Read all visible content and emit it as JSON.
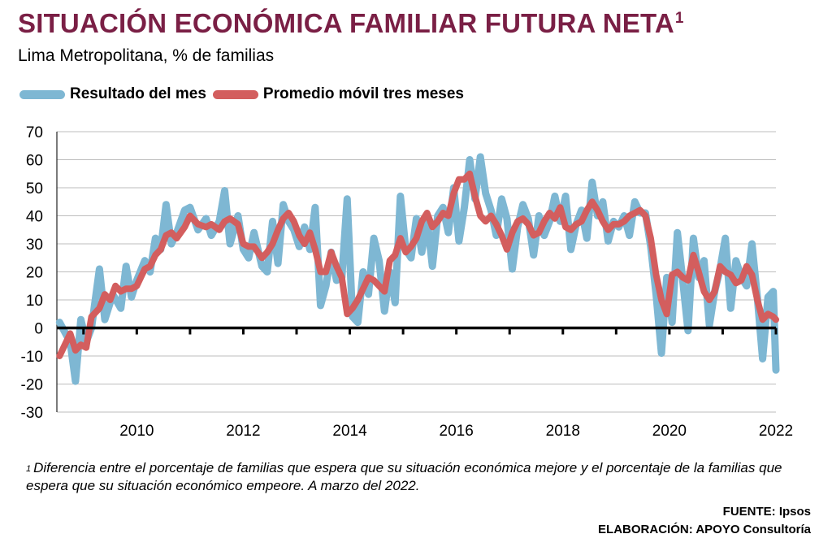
{
  "header": {
    "title": "SITUACIÓN ECONÓMICA FAMILIAR FUTURA NETA",
    "title_sup": "1",
    "subtitle": "Lima Metropolitana, % de familias"
  },
  "legend": {
    "monthly_label": "Resultado del mes",
    "moving_avg_label": "Promedio móvil tres meses",
    "monthly_color": "#7eb7d3",
    "moving_avg_color": "#d35e5e"
  },
  "footer": {
    "footnote_marker": "1",
    "footnote": "Diferencia entre el porcentaje de familias que espera que su situación económica mejore y el porcentaje de la familias que espera que su situación económico empeore. A marzo del 2022.",
    "source": "FUENTE: Ipsos",
    "elaboration": "ELABORACIÓN: APOYO Consultoría"
  },
  "chart_data": {
    "type": "line",
    "title": "SITUACIÓN ECONÓMICA FAMILIAR FUTURA NETA",
    "subtitle": "Lima Metropolitana, % de familias",
    "xlabel": "",
    "ylabel": "",
    "ylim": [
      -30,
      70
    ],
    "yticks": [
      70,
      60,
      50,
      40,
      30,
      20,
      10,
      0,
      -10,
      -20,
      -30
    ],
    "xlim": [
      2008.5,
      2022.0
    ],
    "xticks": [
      "2010",
      "2012",
      "2014",
      "2016",
      "2018",
      "2020",
      "2022"
    ],
    "grid": "horizontal",
    "legend_position": "top-left",
    "series": [
      {
        "name": "Resultado del mes",
        "color": "#7eb7d3",
        "points": [
          [
            2008.55,
            2
          ],
          [
            2008.75,
            -5
          ],
          [
            2008.85,
            -19
          ],
          [
            2008.95,
            3
          ],
          [
            2009.05,
            -5
          ],
          [
            2009.15,
            0
          ],
          [
            2009.3,
            21
          ],
          [
            2009.4,
            3
          ],
          [
            2009.55,
            12
          ],
          [
            2009.7,
            7
          ],
          [
            2009.8,
            22
          ],
          [
            2009.9,
            11
          ],
          [
            2010.0,
            17
          ],
          [
            2010.15,
            24
          ],
          [
            2010.25,
            20
          ],
          [
            2010.35,
            32
          ],
          [
            2010.45,
            28
          ],
          [
            2010.55,
            44
          ],
          [
            2010.65,
            30
          ],
          [
            2010.75,
            34
          ],
          [
            2010.9,
            42
          ],
          [
            2011.0,
            43
          ],
          [
            2011.15,
            35
          ],
          [
            2011.3,
            39
          ],
          [
            2011.4,
            33
          ],
          [
            2011.55,
            38
          ],
          [
            2011.65,
            49
          ],
          [
            2011.75,
            30
          ],
          [
            2011.9,
            40
          ],
          [
            2012.0,
            28
          ],
          [
            2012.1,
            25
          ],
          [
            2012.2,
            34
          ],
          [
            2012.35,
            22
          ],
          [
            2012.45,
            20
          ],
          [
            2012.55,
            38
          ],
          [
            2012.65,
            23
          ],
          [
            2012.75,
            44
          ],
          [
            2012.85,
            38
          ],
          [
            2012.95,
            35
          ],
          [
            2013.05,
            29
          ],
          [
            2013.15,
            36
          ],
          [
            2013.25,
            28
          ],
          [
            2013.35,
            43
          ],
          [
            2013.45,
            8
          ],
          [
            2013.55,
            15
          ],
          [
            2013.65,
            27
          ],
          [
            2013.75,
            17
          ],
          [
            2013.85,
            18
          ],
          [
            2013.95,
            46
          ],
          [
            2014.05,
            4
          ],
          [
            2014.15,
            2
          ],
          [
            2014.25,
            20
          ],
          [
            2014.35,
            12
          ],
          [
            2014.45,
            32
          ],
          [
            2014.55,
            24
          ],
          [
            2014.65,
            6
          ],
          [
            2014.75,
            20
          ],
          [
            2014.85,
            9
          ],
          [
            2014.95,
            47
          ],
          [
            2015.05,
            28
          ],
          [
            2015.15,
            25
          ],
          [
            2015.25,
            39
          ],
          [
            2015.35,
            27
          ],
          [
            2015.45,
            39
          ],
          [
            2015.55,
            22
          ],
          [
            2015.65,
            40
          ],
          [
            2015.75,
            43
          ],
          [
            2015.85,
            34
          ],
          [
            2015.95,
            50
          ],
          [
            2016.05,
            31
          ],
          [
            2016.15,
            43
          ],
          [
            2016.25,
            60
          ],
          [
            2016.35,
            46
          ],
          [
            2016.45,
            61
          ],
          [
            2016.55,
            48
          ],
          [
            2016.65,
            42
          ],
          [
            2016.75,
            33
          ],
          [
            2016.85,
            46
          ],
          [
            2016.95,
            39
          ],
          [
            2017.05,
            21
          ],
          [
            2017.15,
            36
          ],
          [
            2017.25,
            44
          ],
          [
            2017.35,
            39
          ],
          [
            2017.45,
            26
          ],
          [
            2017.55,
            40
          ],
          [
            2017.65,
            33
          ],
          [
            2017.75,
            38
          ],
          [
            2017.85,
            47
          ],
          [
            2017.95,
            38
          ],
          [
            2018.05,
            47
          ],
          [
            2018.15,
            28
          ],
          [
            2018.25,
            37
          ],
          [
            2018.35,
            42
          ],
          [
            2018.45,
            32
          ],
          [
            2018.55,
            52
          ],
          [
            2018.65,
            40
          ],
          [
            2018.75,
            45
          ],
          [
            2018.85,
            31
          ],
          [
            2018.95,
            38
          ],
          [
            2019.05,
            36
          ],
          [
            2019.15,
            40
          ],
          [
            2019.25,
            33
          ],
          [
            2019.35,
            45
          ],
          [
            2019.45,
            41
          ],
          [
            2019.55,
            41
          ],
          [
            2019.65,
            29
          ],
          [
            2019.75,
            12
          ],
          [
            2019.85,
            -9
          ],
          [
            2019.95,
            18
          ],
          [
            2020.05,
            2
          ],
          [
            2020.15,
            34
          ],
          [
            2020.25,
            17
          ],
          [
            2020.35,
            -1
          ],
          [
            2020.45,
            32
          ],
          [
            2020.55,
            18
          ],
          [
            2020.65,
            24
          ],
          [
            2020.75,
            1
          ],
          [
            2020.85,
            13
          ],
          [
            2020.95,
            21
          ],
          [
            2021.05,
            32
          ],
          [
            2021.15,
            7
          ],
          [
            2021.25,
            24
          ],
          [
            2021.35,
            18
          ],
          [
            2021.45,
            15
          ],
          [
            2021.55,
            30
          ],
          [
            2021.65,
            11
          ],
          [
            2021.75,
            -11
          ],
          [
            2021.85,
            11
          ],
          [
            2021.95,
            13
          ],
          [
            2022.0,
            -15
          ]
        ]
      },
      {
        "name": "Promedio móvil tres meses",
        "color": "#d35e5e",
        "points": [
          [
            2008.55,
            -10
          ],
          [
            2008.75,
            -2
          ],
          [
            2008.85,
            -8
          ],
          [
            2008.95,
            -6
          ],
          [
            2009.05,
            -7
          ],
          [
            2009.15,
            4
          ],
          [
            2009.3,
            7
          ],
          [
            2009.4,
            12
          ],
          [
            2009.5,
            10
          ],
          [
            2009.6,
            15
          ],
          [
            2009.7,
            13
          ],
          [
            2009.8,
            14
          ],
          [
            2009.9,
            14
          ],
          [
            2010.0,
            15
          ],
          [
            2010.15,
            21
          ],
          [
            2010.25,
            22
          ],
          [
            2010.35,
            26
          ],
          [
            2010.45,
            28
          ],
          [
            2010.55,
            33
          ],
          [
            2010.65,
            34
          ],
          [
            2010.75,
            32
          ],
          [
            2010.9,
            36
          ],
          [
            2011.0,
            40
          ],
          [
            2011.15,
            37
          ],
          [
            2011.3,
            36
          ],
          [
            2011.4,
            37
          ],
          [
            2011.55,
            35
          ],
          [
            2011.65,
            38
          ],
          [
            2011.75,
            39
          ],
          [
            2011.9,
            37
          ],
          [
            2012.0,
            30
          ],
          [
            2012.1,
            29
          ],
          [
            2012.2,
            29
          ],
          [
            2012.35,
            25
          ],
          [
            2012.45,
            27
          ],
          [
            2012.55,
            30
          ],
          [
            2012.65,
            35
          ],
          [
            2012.75,
            39
          ],
          [
            2012.85,
            41
          ],
          [
            2012.95,
            38
          ],
          [
            2013.05,
            33
          ],
          [
            2013.15,
            30
          ],
          [
            2013.25,
            34
          ],
          [
            2013.35,
            28
          ],
          [
            2013.45,
            20
          ],
          [
            2013.55,
            20
          ],
          [
            2013.65,
            27
          ],
          [
            2013.75,
            22
          ],
          [
            2013.85,
            18
          ],
          [
            2013.95,
            5
          ],
          [
            2014.05,
            7
          ],
          [
            2014.15,
            10
          ],
          [
            2014.25,
            14
          ],
          [
            2014.35,
            18
          ],
          [
            2014.45,
            17
          ],
          [
            2014.55,
            15
          ],
          [
            2014.65,
            13
          ],
          [
            2014.75,
            24
          ],
          [
            2014.85,
            26
          ],
          [
            2014.95,
            32
          ],
          [
            2015.05,
            27
          ],
          [
            2015.15,
            29
          ],
          [
            2015.25,
            32
          ],
          [
            2015.35,
            38
          ],
          [
            2015.45,
            41
          ],
          [
            2015.55,
            36
          ],
          [
            2015.65,
            38
          ],
          [
            2015.75,
            41
          ],
          [
            2015.85,
            40
          ],
          [
            2015.95,
            48
          ],
          [
            2016.05,
            53
          ],
          [
            2016.15,
            53
          ],
          [
            2016.25,
            55
          ],
          [
            2016.35,
            47
          ],
          [
            2016.45,
            40
          ],
          [
            2016.55,
            38
          ],
          [
            2016.65,
            40
          ],
          [
            2016.75,
            37
          ],
          [
            2016.85,
            33
          ],
          [
            2016.95,
            28
          ],
          [
            2017.05,
            34
          ],
          [
            2017.15,
            38
          ],
          [
            2017.25,
            39
          ],
          [
            2017.35,
            37
          ],
          [
            2017.45,
            33
          ],
          [
            2017.55,
            34
          ],
          [
            2017.65,
            38
          ],
          [
            2017.75,
            41
          ],
          [
            2017.85,
            39
          ],
          [
            2017.95,
            43
          ],
          [
            2018.05,
            36
          ],
          [
            2018.15,
            35
          ],
          [
            2018.25,
            37
          ],
          [
            2018.35,
            38
          ],
          [
            2018.45,
            42
          ],
          [
            2018.55,
            45
          ],
          [
            2018.65,
            42
          ],
          [
            2018.75,
            38
          ],
          [
            2018.85,
            35
          ],
          [
            2018.95,
            37
          ],
          [
            2019.05,
            37
          ],
          [
            2019.15,
            38
          ],
          [
            2019.25,
            40
          ],
          [
            2019.35,
            41
          ],
          [
            2019.45,
            42
          ],
          [
            2019.55,
            40
          ],
          [
            2019.65,
            32
          ],
          [
            2019.75,
            19
          ],
          [
            2019.85,
            10
          ],
          [
            2019.95,
            5
          ],
          [
            2020.05,
            19
          ],
          [
            2020.15,
            20
          ],
          [
            2020.25,
            18
          ],
          [
            2020.35,
            17
          ],
          [
            2020.45,
            26
          ],
          [
            2020.55,
            20
          ],
          [
            2020.65,
            13
          ],
          [
            2020.75,
            10
          ],
          [
            2020.85,
            13
          ],
          [
            2020.95,
            22
          ],
          [
            2021.05,
            20
          ],
          [
            2021.15,
            19
          ],
          [
            2021.25,
            16
          ],
          [
            2021.35,
            17
          ],
          [
            2021.45,
            22
          ],
          [
            2021.55,
            19
          ],
          [
            2021.65,
            10
          ],
          [
            2021.75,
            3
          ],
          [
            2021.85,
            5
          ],
          [
            2021.95,
            4
          ],
          [
            2022.0,
            3
          ]
        ]
      }
    ]
  }
}
